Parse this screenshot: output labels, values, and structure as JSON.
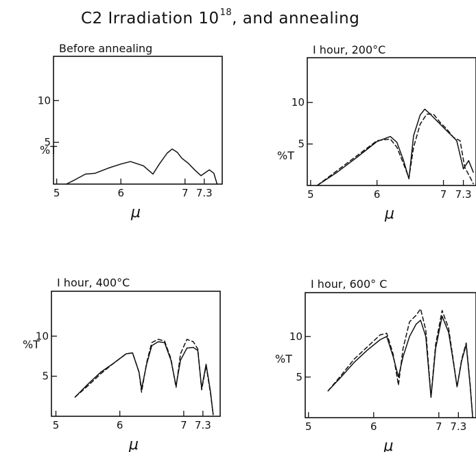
{
  "figure": {
    "title_main": "C2  Irradiation 10",
    "title_exp": "18",
    "title_tail": ", and annealing"
  },
  "chart_data": [
    {
      "type": "line",
      "title": "Before annealing",
      "xlabel": "μ",
      "ylabel": "%T",
      "xticks": [
        "5",
        "6",
        "7",
        "7.3"
      ],
      "yticks": [
        "5",
        "10"
      ],
      "xlim": [
        4.95,
        7.58
      ],
      "ylim": [
        0,
        15.3
      ],
      "series": [
        {
          "style": "solid",
          "x": [
            5.15,
            5.28,
            5.45,
            5.6,
            5.8,
            6.0,
            6.15,
            6.35,
            6.5,
            6.6,
            6.72,
            6.8,
            6.88,
            6.95,
            7.05,
            7.15,
            7.25,
            7.32,
            7.38,
            7.45,
            7.5
          ],
          "y": [
            0.0,
            0.5,
            1.2,
            1.3,
            1.9,
            2.4,
            2.7,
            2.2,
            1.2,
            2.4,
            3.7,
            4.2,
            3.8,
            3.1,
            2.5,
            1.7,
            1.0,
            1.4,
            1.7,
            1.3,
            0.0
          ]
        }
      ]
    },
    {
      "type": "line",
      "title": "I hour, 200°C",
      "xlabel": "μ",
      "ylabel": "%T",
      "xticks": [
        "5",
        "6",
        "7",
        "7.3"
      ],
      "yticks": [
        "5",
        "10"
      ],
      "xlim": [
        4.95,
        7.49
      ],
      "ylim": [
        0,
        15.4
      ],
      "series": [
        {
          "style": "solid",
          "x": [
            5.1,
            5.4,
            5.7,
            6.0,
            6.2,
            6.3,
            6.4,
            6.48,
            6.55,
            6.65,
            6.72,
            6.8,
            6.9,
            7.0,
            7.1,
            7.2,
            7.3,
            7.38,
            7.45
          ],
          "y": [
            0.0,
            1.6,
            3.4,
            5.3,
            5.9,
            5.2,
            3.0,
            0.8,
            6.0,
            8.5,
            9.2,
            8.6,
            7.8,
            7.0,
            6.2,
            5.4,
            2.0,
            3.0,
            1.6
          ]
        },
        {
          "style": "dashed",
          "x": [
            5.1,
            5.4,
            5.7,
            6.0,
            6.2,
            6.3,
            6.4,
            6.48,
            6.55,
            6.65,
            6.75,
            6.85,
            6.95,
            7.05,
            7.15,
            7.25,
            7.32,
            7.4,
            7.45
          ],
          "y": [
            0.0,
            1.8,
            3.6,
            5.4,
            5.6,
            4.6,
            2.6,
            0.9,
            4.6,
            7.4,
            8.6,
            8.6,
            7.6,
            6.8,
            5.8,
            5.4,
            2.2,
            1.0,
            0.2
          ]
        }
      ]
    },
    {
      "type": "line",
      "title": "I hour, 400°C",
      "xlabel": "μ",
      "ylabel": "%T",
      "xticks": [
        "5",
        "6",
        "7",
        "7.3"
      ],
      "yticks": [
        "5",
        "10"
      ],
      "xlim": [
        4.93,
        7.57
      ],
      "ylim": [
        0,
        15.6
      ],
      "series": [
        {
          "style": "solid",
          "x": [
            5.3,
            5.5,
            5.7,
            5.9,
            6.1,
            6.2,
            6.3,
            6.34,
            6.42,
            6.5,
            6.6,
            6.7,
            6.8,
            6.88,
            6.95,
            7.05,
            7.15,
            7.22,
            7.28,
            7.35,
            7.42,
            7.46
          ],
          "y": [
            2.4,
            4.0,
            5.5,
            6.6,
            7.8,
            7.9,
            5.5,
            3.4,
            6.5,
            8.8,
            9.3,
            9.2,
            7.0,
            3.8,
            7.0,
            8.5,
            8.6,
            8.2,
            3.5,
            6.5,
            3.0,
            0.2
          ]
        },
        {
          "style": "dashed",
          "x": [
            5.3,
            5.5,
            5.7,
            5.9,
            6.1,
            6.2,
            6.3,
            6.34,
            6.42,
            6.5,
            6.6,
            6.7,
            6.8,
            6.88,
            6.95,
            7.05,
            7.15,
            7.22,
            7.28,
            7.35,
            7.42,
            7.46
          ],
          "y": [
            2.4,
            3.8,
            5.3,
            6.6,
            7.8,
            7.9,
            5.5,
            3.0,
            6.7,
            9.2,
            9.6,
            9.4,
            7.2,
            3.6,
            7.8,
            9.6,
            9.3,
            8.4,
            3.3,
            6.3,
            2.8,
            0.2
          ]
        }
      ]
    },
    {
      "type": "line",
      "title": "I hour, 600° C",
      "xlabel": "μ",
      "ylabel": "%T",
      "xticks": [
        "5",
        "6",
        "7",
        "7.3"
      ],
      "yticks": [
        "5",
        "10"
      ],
      "xlim": [
        4.95,
        7.57
      ],
      "ylim": [
        0,
        15.4
      ],
      "series": [
        {
          "style": "solid",
          "x": [
            5.3,
            5.5,
            5.7,
            5.9,
            6.1,
            6.2,
            6.3,
            6.38,
            6.45,
            6.55,
            6.65,
            6.72,
            6.8,
            6.88,
            6.95,
            7.05,
            7.15,
            7.22,
            7.28,
            7.35,
            7.42,
            7.48,
            7.52
          ],
          "y": [
            3.3,
            5.0,
            6.8,
            8.3,
            9.6,
            10.0,
            7.5,
            5.0,
            7.5,
            10.0,
            11.5,
            12.0,
            10.0,
            2.5,
            8.5,
            12.5,
            10.5,
            7.0,
            3.8,
            7.0,
            9.0,
            4.0,
            0.0
          ]
        },
        {
          "style": "dashed",
          "x": [
            5.3,
            5.5,
            5.7,
            5.9,
            6.1,
            6.2,
            6.3,
            6.38,
            6.45,
            6.55,
            6.65,
            6.72,
            6.8,
            6.88,
            6.95,
            7.05,
            7.15,
            7.22,
            7.28,
            7.35,
            7.42,
            7.48,
            7.52
          ],
          "y": [
            3.3,
            5.2,
            7.2,
            8.7,
            10.2,
            10.4,
            7.8,
            4.0,
            8.5,
            11.8,
            12.6,
            13.4,
            10.8,
            2.6,
            9.0,
            13.2,
            11.0,
            7.2,
            3.8,
            7.2,
            9.2,
            4.2,
            0.0
          ]
        }
      ]
    }
  ]
}
